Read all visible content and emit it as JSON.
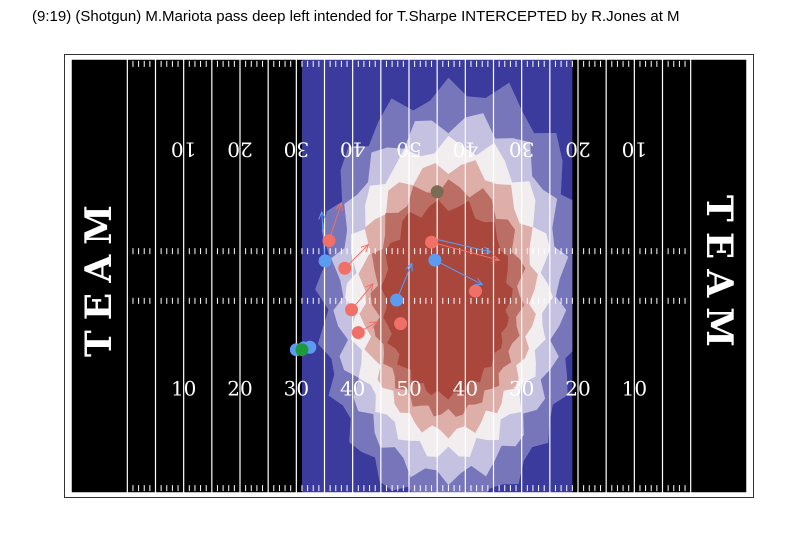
{
  "title": "(9:19) (Shotgun) M.Mariota pass deep left intended for T.Sharpe INTERCEPTED by R.Jones at M",
  "field": {
    "endzone_label_left": "TEAM",
    "endzone_label_right": "TEAM",
    "colors": {
      "turf": "#000000",
      "lines": "#ffffff",
      "heat_low": "#3b3b9e",
      "heat_mid": "#f4f0f0",
      "heat_high": "#a8453a"
    }
  },
  "chart_data": {
    "type": "scatter",
    "title": "(9:19) (Shotgun) M.Mariota pass deep left intended for T.Sharpe INTERCEPTED by R.Jones at M",
    "xlabel": "",
    "ylabel": "",
    "xlim": [
      0,
      120
    ],
    "ylim": [
      0,
      53.3
    ],
    "grid": false,
    "yard_labels_bottom": [
      "10",
      "20",
      "30",
      "40",
      "50",
      "40",
      "30",
      "20",
      "10"
    ],
    "yard_labels_top": [
      "10",
      "20",
      "30",
      "40",
      "50",
      "40",
      "30",
      "20",
      "10"
    ],
    "heatmap": {
      "center": [
        67,
        20.5
      ],
      "blobs": [
        {
          "x": 67,
          "y": 21,
          "sx": 9,
          "sy": 10,
          "w": 1.0
        },
        {
          "x": 60,
          "y": 28,
          "sx": 7,
          "sy": 9,
          "w": 0.45
        },
        {
          "x": 74,
          "y": 30,
          "sx": 8,
          "sy": 10,
          "w": 0.4
        }
      ],
      "extent_x": [
        41,
        89
      ],
      "color_scale": [
        "#3b3b9e",
        "#7b79bd",
        "#c9c6e3",
        "#f4f0f0",
        "#dcaaa4",
        "#b86a60",
        "#a8453a"
      ]
    },
    "series": [
      {
        "name": "offense",
        "color": "#f07067",
        "points": [
          {
            "x": 45.8,
            "y": 31.0
          },
          {
            "x": 48.6,
            "y": 27.6
          },
          {
            "x": 49.8,
            "y": 22.5
          },
          {
            "x": 51.0,
            "y": 19.7
          },
          {
            "x": 58.5,
            "y": 20.8
          },
          {
            "x": 64.0,
            "y": 30.8
          },
          {
            "x": 71.8,
            "y": 24.8
          }
        ]
      },
      {
        "name": "defense",
        "color": "#5c9cf0",
        "points": [
          {
            "x": 45.1,
            "y": 28.5
          },
          {
            "x": 57.8,
            "y": 23.7
          },
          {
            "x": 64.6,
            "y": 28.6
          },
          {
            "x": 40.0,
            "y": 17.6
          },
          {
            "x": 41.3,
            "y": 17.8
          },
          {
            "x": 42.4,
            "y": 17.9
          }
        ]
      },
      {
        "name": "football",
        "color": "#1e9a3c",
        "points": [
          {
            "x": 41.0,
            "y": 17.6
          }
        ]
      },
      {
        "name": "target",
        "color": "#7a6b55",
        "points": [
          {
            "x": 65.0,
            "y": 37.0
          }
        ]
      }
    ],
    "routes": [
      {
        "from": [
          45.8,
          31.0
        ],
        "to": [
          48.0,
          35.6
        ],
        "color": "#f07067"
      },
      {
        "from": [
          48.6,
          27.6
        ],
        "to": [
          52.8,
          30.5
        ],
        "color": "#f07067"
      },
      {
        "from": [
          49.8,
          22.5
        ],
        "to": [
          53.6,
          25.7
        ],
        "color": "#f07067"
      },
      {
        "from": [
          51.0,
          19.7
        ],
        "to": [
          54.3,
          21.0
        ],
        "color": "#f07067"
      },
      {
        "from": [
          64.0,
          30.8
        ],
        "to": [
          76.0,
          28.6
        ],
        "color": "#f07067"
      },
      {
        "from": [
          57.8,
          23.7
        ],
        "to": [
          60.5,
          28.2
        ],
        "color": "#5c9cf0"
      },
      {
        "from": [
          64.6,
          28.6
        ],
        "to": [
          73.0,
          25.6
        ],
        "color": "#5c9cf0"
      },
      {
        "from": [
          64.0,
          31.3
        ],
        "to": [
          74.5,
          29.6
        ],
        "color": "#5c9cf0"
      },
      {
        "from": [
          45.1,
          28.5
        ],
        "to": [
          44.5,
          34.5
        ],
        "color": "#5c9cf0"
      }
    ]
  }
}
